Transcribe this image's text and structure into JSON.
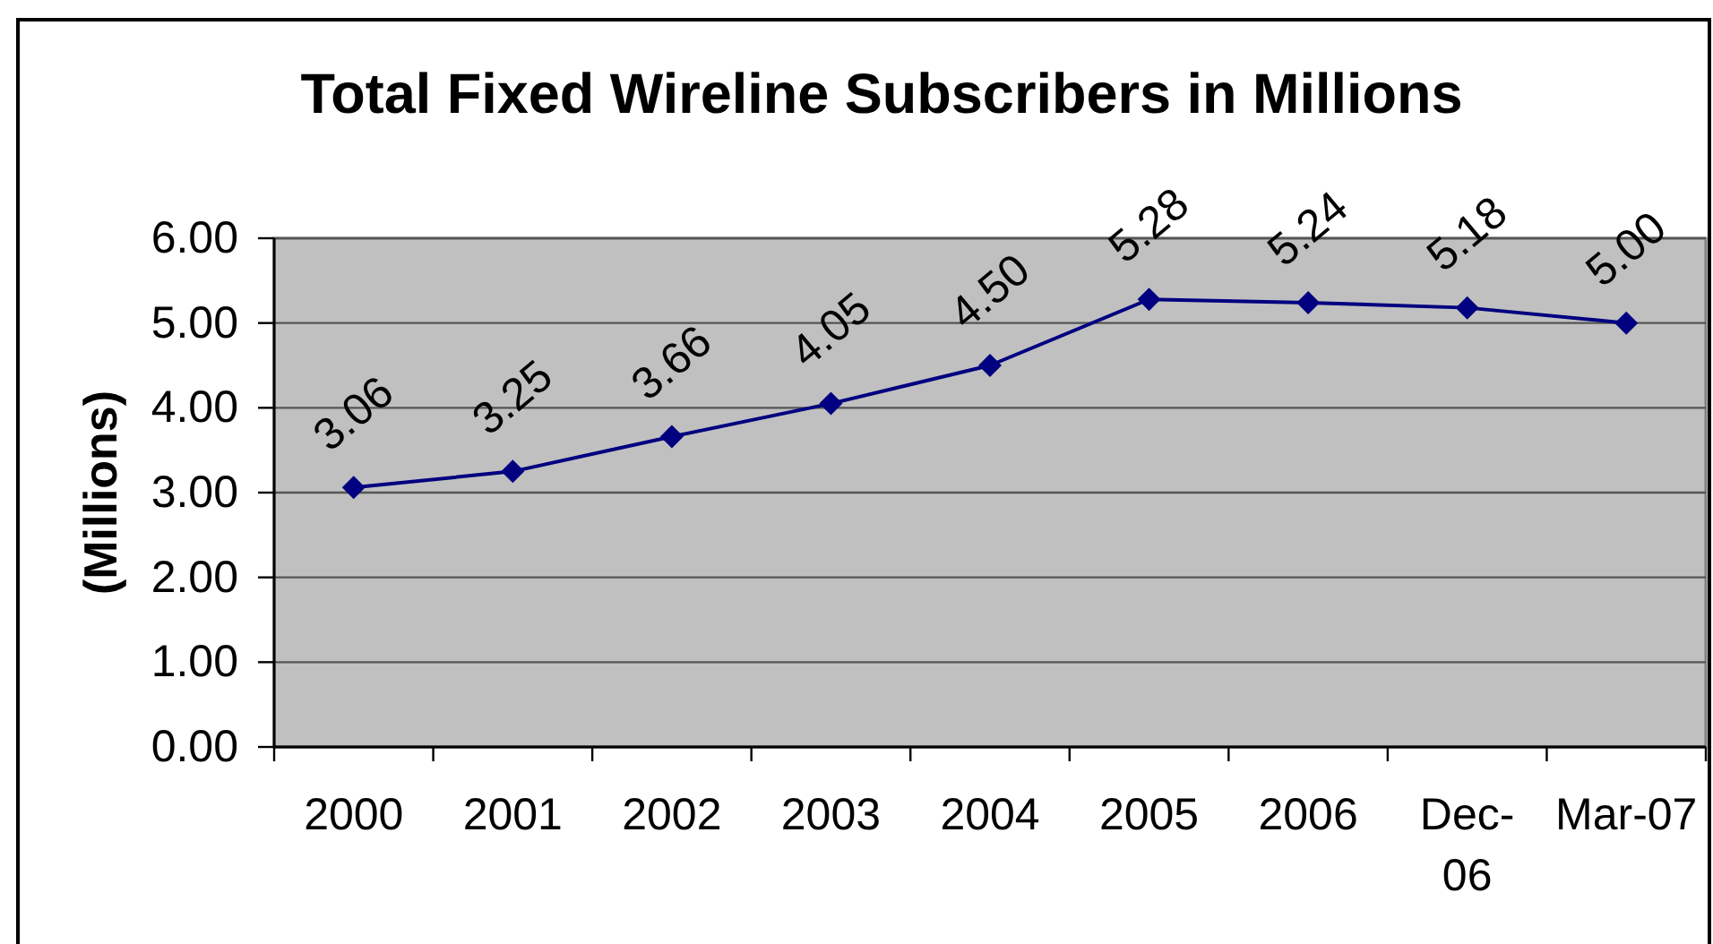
{
  "chart_data": {
    "type": "line",
    "title": "Total Fixed Wireline Subscribers in Millions",
    "ylabel": "(Millions)",
    "categories": [
      "2000",
      "2001",
      "2002",
      "2003",
      "2004",
      "2005",
      "2006",
      "Dec-06",
      "Mar-07"
    ],
    "series": [
      {
        "color": "#000080",
        "values": [
          3.06,
          3.25,
          3.66,
          4.05,
          4.5,
          5.28,
          5.24,
          5.18,
          5.0
        ],
        "value_labels": [
          "3.06",
          "3.25",
          "3.66",
          "4.05",
          "4.50",
          "5.28",
          "5.24",
          "5.18",
          "5.00"
        ]
      }
    ],
    "ylim": [
      0,
      6
    ],
    "yticks": [
      {
        "value": 0,
        "label": "0.00"
      },
      {
        "value": 1,
        "label": "1.00"
      },
      {
        "value": 2,
        "label": "2.00"
      },
      {
        "value": 3,
        "label": "3.00"
      },
      {
        "value": 4,
        "label": "4.00"
      },
      {
        "value": 5,
        "label": "5.00"
      },
      {
        "value": 6,
        "label": "6.00"
      }
    ],
    "grid": "y",
    "marker": "diamond",
    "line_style": "solid"
  }
}
